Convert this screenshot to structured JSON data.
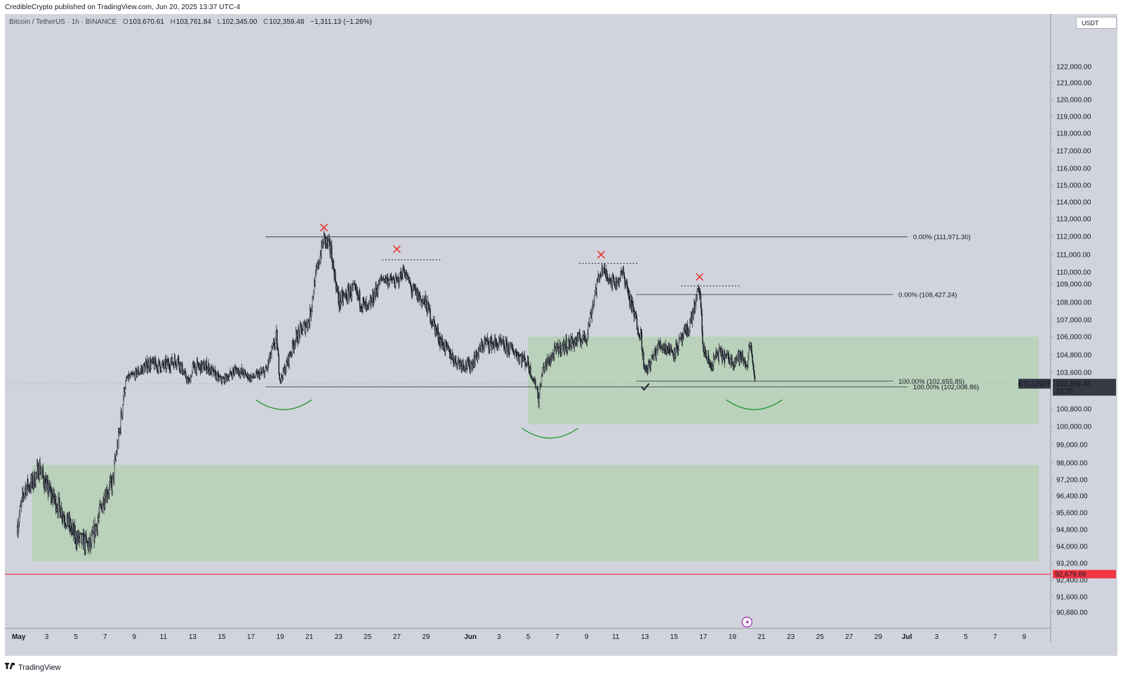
{
  "header": {
    "published": "CredibleCrypto published on TradingView.com, Jun 20, 2025 13:37 UTC-4"
  },
  "legend": {
    "symbol": "Bitcoin / TetherUS · 1h · BINANCE",
    "open": "103,670.61",
    "high": "103,761.84",
    "low": "102,345.00",
    "close": "102,359.48",
    "change": "−1,311.13 (−1.26%)"
  },
  "currency_button": "USDT",
  "footer": {
    "brand": "TradingView"
  },
  "colors": {
    "background": "#d1d4dc",
    "zone": "#a8cfa0",
    "candles": "#131722",
    "marker_red": "#e53935",
    "arc_green": "#2e9b3e",
    "support_red": "#f23645",
    "price_tag": "#363a45"
  },
  "icons": [
    "tradingview-logo-icon",
    "lightning-event-icon",
    "x-mark-icon",
    "check-mark-icon"
  ],
  "chart_data": {
    "type": "candlestick",
    "interval": "1h",
    "x_unit": "date",
    "ylim": [
      90000,
      122600
    ],
    "y_ticks": [
      {
        "v": 122000,
        "label": "122,000.00"
      },
      {
        "v": 121000,
        "label": "121,000.00"
      },
      {
        "v": 120000,
        "label": "120,000.00"
      },
      {
        "v": 119000,
        "label": "119,000.00"
      },
      {
        "v": 118000,
        "label": "118,000.00"
      },
      {
        "v": 117000,
        "label": "117,000.00"
      },
      {
        "v": 116000,
        "label": "116,000.00"
      },
      {
        "v": 115000,
        "label": "115,000.00"
      },
      {
        "v": 114000,
        "label": "114,000.00"
      },
      {
        "v": 113000,
        "label": "113,000.00"
      },
      {
        "v": 112000,
        "label": "112,000.00"
      },
      {
        "v": 111000,
        "label": "111,000.00"
      },
      {
        "v": 110000,
        "label": "110,000.00"
      },
      {
        "v": 109000,
        "label": "109,000.00"
      },
      {
        "v": 108000,
        "label": "108,000.00"
      },
      {
        "v": 107000,
        "label": "107,000.00"
      },
      {
        "v": 106000,
        "label": "106,000.00"
      },
      {
        "v": 104800,
        "label": "104,800.00"
      },
      {
        "v": 103600,
        "label": "103,600.00"
      },
      {
        "v": 101600,
        "label": "101,600.00"
      },
      {
        "v": 100800,
        "label": "100,800.00"
      },
      {
        "v": 100000,
        "label": "100,000.00"
      },
      {
        "v": 99000,
        "label": "99,000.00"
      },
      {
        "v": 98000,
        "label": "98,000.00"
      },
      {
        "v": 97200,
        "label": "97,200.00"
      },
      {
        "v": 96400,
        "label": "96,400.00"
      },
      {
        "v": 95600,
        "label": "95,600.00"
      },
      {
        "v": 94800,
        "label": "94,800.00"
      },
      {
        "v": 94000,
        "label": "94,000.00"
      },
      {
        "v": 93200,
        "label": "93,200.00"
      },
      {
        "v": 92400,
        "label": "92,400.00"
      },
      {
        "v": 91600,
        "label": "91,600.00"
      },
      {
        "v": 90880,
        "label": "90,880.00"
      }
    ],
    "x_ticks": [
      {
        "d": "2025-05-01",
        "label": "May"
      },
      {
        "d": "2025-05-03",
        "label": "3"
      },
      {
        "d": "2025-05-05",
        "label": "5"
      },
      {
        "d": "2025-05-07",
        "label": "7"
      },
      {
        "d": "2025-05-09",
        "label": "9"
      },
      {
        "d": "2025-05-11",
        "label": "11"
      },
      {
        "d": "2025-05-13",
        "label": "13"
      },
      {
        "d": "2025-05-15",
        "label": "15"
      },
      {
        "d": "2025-05-17",
        "label": "17"
      },
      {
        "d": "2025-05-19",
        "label": "19"
      },
      {
        "d": "2025-05-21",
        "label": "21"
      },
      {
        "d": "2025-05-23",
        "label": "23"
      },
      {
        "d": "2025-05-25",
        "label": "25"
      },
      {
        "d": "2025-05-27",
        "label": "27"
      },
      {
        "d": "2025-05-29",
        "label": "29"
      },
      {
        "d": "2025-06-01",
        "label": "Jun"
      },
      {
        "d": "2025-06-03",
        "label": "3"
      },
      {
        "d": "2025-06-05",
        "label": "5"
      },
      {
        "d": "2025-06-07",
        "label": "7"
      },
      {
        "d": "2025-06-09",
        "label": "9"
      },
      {
        "d": "2025-06-11",
        "label": "11"
      },
      {
        "d": "2025-06-13",
        "label": "13"
      },
      {
        "d": "2025-06-15",
        "label": "15"
      },
      {
        "d": "2025-06-17",
        "label": "17"
      },
      {
        "d": "2025-06-19",
        "label": "19"
      },
      {
        "d": "2025-06-21",
        "label": "21"
      },
      {
        "d": "2025-06-23",
        "label": "23"
      },
      {
        "d": "2025-06-25",
        "label": "25"
      },
      {
        "d": "2025-06-27",
        "label": "27"
      },
      {
        "d": "2025-06-29",
        "label": "29"
      },
      {
        "d": "2025-07-01",
        "label": "Jul"
      },
      {
        "d": "2025-07-03",
        "label": "3"
      },
      {
        "d": "2025-07-05",
        "label": "5"
      },
      {
        "d": "2025-07-07",
        "label": "7"
      },
      {
        "d": "2025-07-09",
        "label": "9"
      }
    ],
    "price_path": [
      {
        "d": "2025-05-01",
        "v": 95000
      },
      {
        "d": "2025-05-01T12:00",
        "v": 96800
      },
      {
        "d": "2025-05-02",
        "v": 97000
      },
      {
        "d": "2025-05-02T12:00",
        "v": 97800
      },
      {
        "d": "2025-05-03",
        "v": 96800
      },
      {
        "d": "2025-05-04",
        "v": 95700
      },
      {
        "d": "2025-05-05",
        "v": 94400
      },
      {
        "d": "2025-05-06",
        "v": 94000
      },
      {
        "d": "2025-05-07",
        "v": 96500
      },
      {
        "d": "2025-05-07T12:00",
        "v": 97000
      },
      {
        "d": "2025-05-08",
        "v": 99800
      },
      {
        "d": "2025-05-08T12:00",
        "v": 102900
      },
      {
        "d": "2025-05-09",
        "v": 103300
      },
      {
        "d": "2025-05-10",
        "v": 104200
      },
      {
        "d": "2025-05-11",
        "v": 104000
      },
      {
        "d": "2025-05-12",
        "v": 104500
      },
      {
        "d": "2025-05-12T18:00",
        "v": 102500
      },
      {
        "d": "2025-05-13",
        "v": 103900
      },
      {
        "d": "2025-05-14",
        "v": 104000
      },
      {
        "d": "2025-05-15",
        "v": 102700
      },
      {
        "d": "2025-05-16",
        "v": 103800
      },
      {
        "d": "2025-05-17",
        "v": 103000
      },
      {
        "d": "2025-05-18",
        "v": 103600
      },
      {
        "d": "2025-05-18T18:00",
        "v": 106000
      },
      {
        "d": "2025-05-19",
        "v": 102800
      },
      {
        "d": "2025-05-20",
        "v": 105800
      },
      {
        "d": "2025-05-21",
        "v": 107000
      },
      {
        "d": "2025-05-21T12:00",
        "v": 110000
      },
      {
        "d": "2025-05-22",
        "v": 111900
      },
      {
        "d": "2025-05-22T12:00",
        "v": 111200
      },
      {
        "d": "2025-05-23",
        "v": 108000
      },
      {
        "d": "2025-05-24",
        "v": 108700
      },
      {
        "d": "2025-05-25",
        "v": 107500
      },
      {
        "d": "2025-05-26",
        "v": 109500
      },
      {
        "d": "2025-05-27",
        "v": 109200
      },
      {
        "d": "2025-05-27T12:00",
        "v": 110100
      },
      {
        "d": "2025-05-28",
        "v": 108700
      },
      {
        "d": "2025-05-29",
        "v": 107900
      },
      {
        "d": "2025-05-30",
        "v": 105700
      },
      {
        "d": "2025-05-31",
        "v": 104400
      },
      {
        "d": "2025-06-01",
        "v": 104000
      },
      {
        "d": "2025-06-02",
        "v": 105600
      },
      {
        "d": "2025-06-03",
        "v": 105500
      },
      {
        "d": "2025-06-04",
        "v": 105100
      },
      {
        "d": "2025-06-05",
        "v": 104200
      },
      {
        "d": "2025-06-05T18:00",
        "v": 101300
      },
      {
        "d": "2025-06-06",
        "v": 103800
      },
      {
        "d": "2025-06-07",
        "v": 105200
      },
      {
        "d": "2025-06-08",
        "v": 105600
      },
      {
        "d": "2025-06-09",
        "v": 106000
      },
      {
        "d": "2025-06-09T12:00",
        "v": 108200
      },
      {
        "d": "2025-06-10",
        "v": 110100
      },
      {
        "d": "2025-06-11",
        "v": 109100
      },
      {
        "d": "2025-06-11T12:00",
        "v": 109900
      },
      {
        "d": "2025-06-12",
        "v": 108000
      },
      {
        "d": "2025-06-12T18:00",
        "v": 106000
      },
      {
        "d": "2025-06-13",
        "v": 103500
      },
      {
        "d": "2025-06-14",
        "v": 105500
      },
      {
        "d": "2025-06-15",
        "v": 105000
      },
      {
        "d": "2025-06-16",
        "v": 106500
      },
      {
        "d": "2025-06-16T18:00",
        "v": 108800
      },
      {
        "d": "2025-06-17",
        "v": 105200
      },
      {
        "d": "2025-06-17T12:00",
        "v": 104000
      },
      {
        "d": "2025-06-18",
        "v": 104900
      },
      {
        "d": "2025-06-19",
        "v": 104400
      },
      {
        "d": "2025-06-19T12:00",
        "v": 104700
      },
      {
        "d": "2025-06-20",
        "v": 104100
      },
      {
        "d": "2025-06-20T06:00",
        "v": 105900
      },
      {
        "d": "2025-06-20T13:00",
        "v": 102359
      }
    ],
    "zones": [
      {
        "from": "2025-06-05T00:00",
        "to": "2025-07-10",
        "low": 100100,
        "high": 106000
      },
      {
        "from": "2025-05-02",
        "to": "2025-07-10",
        "low": 93300,
        "high": 97900
      }
    ],
    "lines": [
      {
        "from": "2025-05-18",
        "to": "2025-07-01",
        "value": 111971.3,
        "label": "0.00% (111,971.30)"
      },
      {
        "from": "2025-06-12T10:00",
        "to": "2025-06-30",
        "value": 108427.24,
        "label": "0.00% (108,427.24)"
      },
      {
        "from": "2025-06-12T10:00",
        "to": "2025-06-30",
        "value": 102655.85,
        "label": "100.00% (102,655.85)"
      },
      {
        "from": "2025-05-18",
        "to": "2025-07-01",
        "value": 102008.86,
        "label": "100.00% (102,008.86)"
      }
    ],
    "dotted_levels": [
      {
        "from": "2025-05-26",
        "to": "2025-05-30",
        "value": 110700
      },
      {
        "from": "2025-06-08T12:00",
        "to": "2025-06-12T12:00",
        "value": 110500
      },
      {
        "from": "2025-06-15T12:00",
        "to": "2025-06-19T12:00",
        "value": 108900
      }
    ],
    "x_marks": [
      {
        "d": "2025-05-22",
        "v": 112500
      },
      {
        "d": "2025-05-27",
        "v": 111300
      },
      {
        "d": "2025-06-10",
        "v": 111000
      },
      {
        "d": "2025-06-16T18:00",
        "v": 109600
      }
    ],
    "check_marks": [
      {
        "d": "2025-06-13",
        "v": 102000
      }
    ],
    "arcs": [
      {
        "center": "2025-05-19T06:00",
        "v": 101200
      },
      {
        "center": "2025-06-06T12:00",
        "v": 99900
      },
      {
        "center": "2025-06-20T12:00",
        "v": 101200
      }
    ],
    "support_line": {
      "value": 92679.88,
      "label": "92,679.88"
    },
    "current_price": {
      "symbol": "BTCUSDT",
      "value": 102359.48,
      "label": "102,359.48",
      "countdown": "22:25"
    },
    "event_marker": {
      "d": "2025-06-20"
    }
  }
}
